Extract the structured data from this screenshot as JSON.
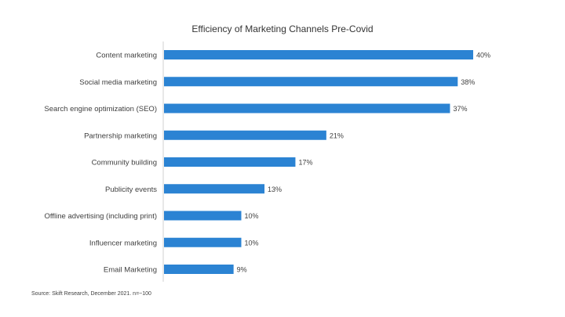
{
  "chart_data": {
    "type": "bar",
    "orientation": "horizontal",
    "title": "Efficiency of Marketing Channels Pre-Covid",
    "categories": [
      "Content marketing",
      "Social media marketing",
      "Search engine optimization (SEO)",
      "Partnership marketing",
      "Community building",
      "Publicity events",
      "Offline advertising (including print)",
      "Influencer marketing",
      "Email Marketing"
    ],
    "values": [
      40,
      38,
      37,
      21,
      17,
      13,
      10,
      10,
      9
    ],
    "data_labels": [
      "40%",
      "38%",
      "37%",
      "21%",
      "17%",
      "13%",
      "10%",
      "10%",
      "9%"
    ],
    "xlim": [
      0,
      40
    ],
    "grid": false,
    "legend": "none",
    "bar_color": "#2B83D3",
    "axis_color": "#D0D0D0"
  },
  "source": "Source: Skift Research, December 2021. n=~100"
}
